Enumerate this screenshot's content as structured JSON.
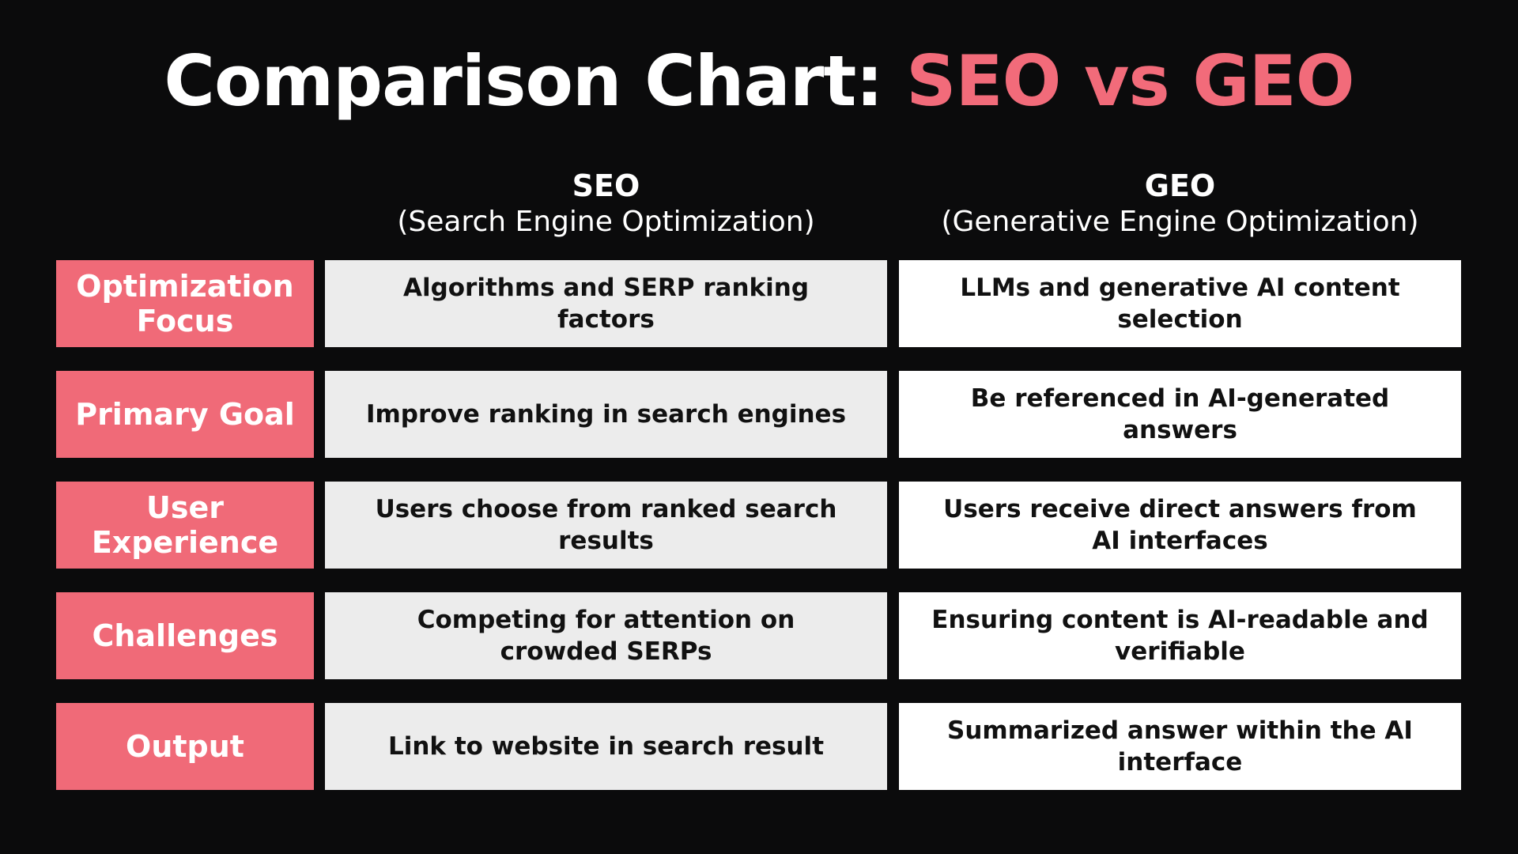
{
  "title": {
    "prefix": "Comparison Chart:",
    "accent": "SEO vs GEO"
  },
  "columns": [
    {
      "name": "SEO",
      "full": "(Search Engine Optimization)"
    },
    {
      "name": "GEO",
      "full": "(Generative Engine Optimization)"
    }
  ],
  "rows": [
    {
      "label": "Optimization Focus",
      "seo": "Algorithms and SERP ranking factors",
      "geo": "LLMs and generative AI content selection"
    },
    {
      "label": "Primary Goal",
      "seo": "Improve ranking in search engines",
      "geo": "Be referenced in AI-generated answers"
    },
    {
      "label": "User Experience",
      "seo": "Users choose from ranked search results",
      "geo": "Users receive direct answers from AI interfaces"
    },
    {
      "label": "Challenges",
      "seo": "Competing for attention on crowded SERPs",
      "geo": "Ensuring content is AI-readable and verifiable"
    },
    {
      "label": "Output",
      "seo": "Link to website in search result",
      "geo": "Summarized answer within the AI interface"
    }
  ],
  "colors": {
    "background": "#0b0b0c",
    "accent": "#f26b7a",
    "label_fill": "#f06a78",
    "seo_cell": "#ececec",
    "geo_cell": "#ffffff"
  }
}
